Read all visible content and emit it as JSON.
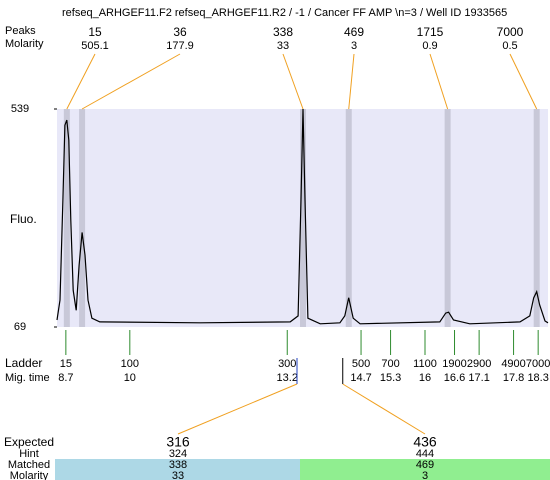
{
  "chart_data": {
    "type": "line",
    "title": "refseq_ARHGEF11.F2  refseq_ARHGEF11.R2 / -1 / Cancer FF AMP \\n=3 / Well ID 1933565",
    "ylabel": "Fluo.",
    "ylim": [
      69,
      539
    ],
    "yticks": [
      69,
      539
    ],
    "xlim": [
      8.52,
      18.5
    ],
    "color": "#000000",
    "background": "#e8e8f8",
    "x": [
      8.52,
      8.58,
      8.64,
      8.68,
      8.72,
      8.76,
      8.8,
      8.85,
      8.91,
      8.97,
      9.03,
      9.09,
      9.15,
      9.23,
      9.39,
      11.43,
      13.26,
      13.42,
      13.48,
      13.52,
      13.56,
      13.62,
      13.87,
      14.27,
      14.37,
      14.45,
      14.54,
      14.68,
      16.3,
      16.42,
      16.48,
      16.58,
      16.91,
      17.93,
      18.13,
      18.21,
      18.27,
      18.33,
      18.44,
      18.5
    ],
    "values": [
      84,
      127,
      343,
      504,
      515,
      472,
      299,
      148,
      105,
      202,
      273,
      224,
      127,
      88,
      80,
      78,
      80,
      93,
      343,
      539,
      343,
      88,
      76,
      78,
      93,
      132,
      88,
      76,
      80,
      99,
      101,
      84,
      76,
      80,
      93,
      132,
      145,
      117,
      82,
      78
    ],
    "peaks": {
      "label": "Peaks",
      "molarity_label": "Molarity",
      "sizes": [
        15,
        36,
        338,
        469,
        1715,
        7000
      ],
      "molarity": [
        505.1,
        177.9,
        33,
        3,
        0.9,
        0.5
      ],
      "times": [
        8.72,
        9.03,
        13.52,
        14.45,
        16.46,
        18.27
      ],
      "band_color": "#c8c8d8",
      "line_color": "#f0a020"
    },
    "ladder": {
      "label": "Ladder",
      "time_label": "Mig. time",
      "sizes": [
        15,
        100,
        300,
        500,
        700,
        1100,
        1900,
        2900,
        4900,
        7000
      ],
      "times": [
        8.7,
        10,
        13.2,
        14.7,
        15.3,
        16,
        16.6,
        17.1,
        17.8,
        18.3
      ],
      "color": "#2e8b2e"
    },
    "table": {
      "row_labels": [
        "Expected",
        "Hint",
        "Matched",
        "Molarity"
      ],
      "expected": [
        316,
        436
      ],
      "hint": [
        324,
        444
      ],
      "matched": [
        338,
        469
      ],
      "molarity": [
        33,
        3
      ],
      "expected_color": "#e02020",
      "colors": [
        "#add8e6",
        "#90ee90"
      ]
    }
  }
}
